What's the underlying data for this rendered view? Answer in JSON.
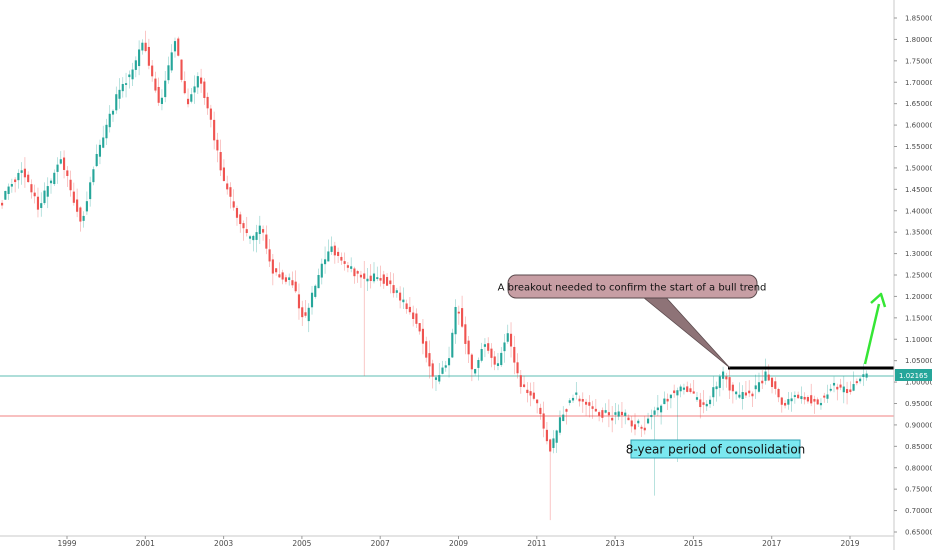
{
  "chart_data": {
    "type": "candlestick",
    "price_axis": {
      "range": [
        0.645,
        1.875
      ],
      "ticks": [
        "1.85000",
        "1.80000",
        "1.75000",
        "1.70000",
        "1.65000",
        "1.60000",
        "1.55000",
        "1.50000",
        "1.45000",
        "1.40000",
        "1.35000",
        "1.30000",
        "1.25000",
        "1.20000",
        "1.15000",
        "1.10000",
        "1.05000",
        "1.00000",
        "0.95000",
        "0.90000",
        "0.85000",
        "0.80000",
        "0.75000",
        "0.70000",
        "0.65000"
      ]
    },
    "time_axis": {
      "range": [
        1997.3,
        2020.3
      ],
      "ticks": [
        "1999",
        "2001",
        "2003",
        "2005",
        "2007",
        "2009",
        "2011",
        "2013",
        "2015",
        "2017",
        "2019"
      ]
    },
    "current_price": "1.02165",
    "resistance_level": 1.03,
    "support_level": 0.918,
    "grid": false,
    "colors": {
      "up": "#26a69a",
      "down": "#ef5350",
      "wick": "#8a8a8a",
      "resistance": "#000000",
      "arrow": "#35e635",
      "price_line": "#26a69a",
      "support_line": "#f08080"
    },
    "annotations": {
      "callout": "A breakout needed to confirm the start of a bull trend",
      "box": "8-year period of consolidation"
    },
    "keypoints": [
      [
        1997.3,
        1.42
      ],
      [
        1997.9,
        1.5
      ],
      [
        1998.3,
        1.41
      ],
      [
        1998.9,
        1.52
      ],
      [
        1999.4,
        1.37
      ],
      [
        1999.8,
        1.53
      ],
      [
        2000.4,
        1.69
      ],
      [
        2000.7,
        1.72
      ],
      [
        2001.0,
        1.8
      ],
      [
        2001.4,
        1.64
      ],
      [
        2001.8,
        1.8
      ],
      [
        2002.1,
        1.64
      ],
      [
        2002.4,
        1.72
      ],
      [
        2002.7,
        1.62
      ],
      [
        2003.0,
        1.48
      ],
      [
        2003.4,
        1.38
      ],
      [
        2003.7,
        1.33
      ],
      [
        2004.0,
        1.36
      ],
      [
        2004.3,
        1.26
      ],
      [
        2004.8,
        1.23
      ],
      [
        2005.1,
        1.14
      ],
      [
        2005.5,
        1.26
      ],
      [
        2005.8,
        1.31
      ],
      [
        2006.3,
        1.26
      ],
      [
        2006.7,
        1.24
      ],
      [
        2007.0,
        1.25
      ],
      [
        2007.5,
        1.2
      ],
      [
        2008.0,
        1.14
      ],
      [
        2008.4,
        1.0
      ],
      [
        2008.8,
        1.05
      ],
      [
        2009.0,
        1.19
      ],
      [
        2009.4,
        1.02
      ],
      [
        2009.7,
        1.09
      ],
      [
        2010.0,
        1.03
      ],
      [
        2010.3,
        1.12
      ],
      [
        2010.6,
        1.0
      ],
      [
        2011.0,
        0.96
      ],
      [
        2011.4,
        0.84
      ],
      [
        2011.7,
        0.93
      ],
      [
        2012.0,
        0.97
      ],
      [
        2012.4,
        0.95
      ],
      [
        2012.7,
        0.92
      ],
      [
        2013.2,
        0.93
      ],
      [
        2013.6,
        0.89
      ],
      [
        2014.0,
        0.92
      ],
      [
        2014.4,
        0.97
      ],
      [
        2014.8,
        0.99
      ],
      [
        2015.3,
        0.94
      ],
      [
        2015.8,
        1.02
      ],
      [
        2016.1,
        0.96
      ],
      [
        2016.6,
        0.98
      ],
      [
        2016.9,
        1.02
      ],
      [
        2017.3,
        0.95
      ],
      [
        2017.8,
        0.97
      ],
      [
        2018.2,
        0.95
      ],
      [
        2018.6,
        0.99
      ],
      [
        2019.0,
        0.98
      ],
      [
        2019.4,
        1.02
      ]
    ]
  }
}
